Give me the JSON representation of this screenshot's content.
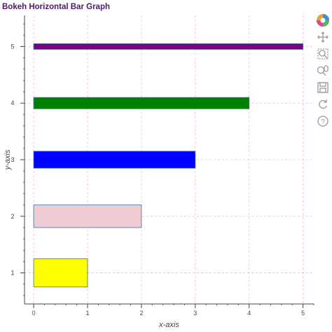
{
  "chart_data": {
    "type": "bar",
    "orientation": "horizontal",
    "title": "Bokeh Horizontal Bar Graph",
    "xlabel": "x-axis",
    "ylabel": "y-axis",
    "xlim": [
      -0.17,
      5.2
    ],
    "ylim": [
      0.45,
      5.55
    ],
    "grid": true,
    "x_ticks": [
      0,
      1,
      2,
      3,
      4,
      5
    ],
    "y_ticks": [
      1,
      2,
      3,
      4,
      5
    ],
    "bars": [
      {
        "y": 1,
        "left": 0,
        "right": 1,
        "height": 0.5,
        "color": "#ffff00",
        "outline": "#3b6ea5"
      },
      {
        "y": 2,
        "left": 0,
        "right": 2,
        "height": 0.4,
        "color": "#f0cdd3",
        "outline": "#3b6ea5"
      },
      {
        "y": 3,
        "left": 0,
        "right": 3,
        "height": 0.3,
        "color": "#0000ff",
        "outline": "#3b6ea5"
      },
      {
        "y": 4,
        "left": 0,
        "right": 4,
        "height": 0.2,
        "color": "#008000",
        "outline": "#3b6ea5"
      },
      {
        "y": 5,
        "left": 0,
        "right": 5,
        "height": 0.1,
        "color": "#800080",
        "outline": "#3b6ea5"
      }
    ]
  },
  "toolbar": {
    "tools": [
      {
        "name": "bokeh-logo-icon"
      },
      {
        "name": "pan-icon"
      },
      {
        "name": "box-zoom-icon"
      },
      {
        "name": "wheel-zoom-icon"
      },
      {
        "name": "save-icon"
      },
      {
        "name": "reset-icon"
      },
      {
        "name": "help-icon"
      }
    ]
  }
}
